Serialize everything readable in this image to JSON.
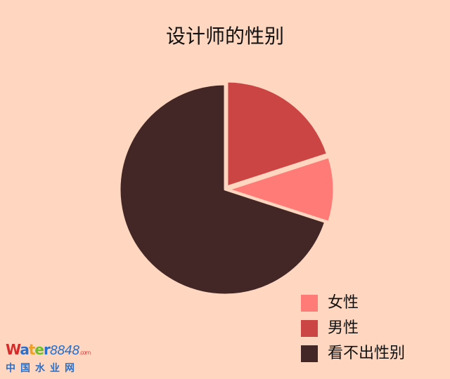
{
  "chart_data": {
    "type": "pie",
    "title": "设计师的性别",
    "categories": [
      "女性",
      "男性",
      "看不出性别"
    ],
    "values": [
      10,
      20,
      70
    ],
    "colors": [
      "#FF7B77",
      "#CC4545",
      "#432626"
    ],
    "start_angle_from_top_deg": 0,
    "direction": "clockwise",
    "slice_order": [
      "男性",
      "女性",
      "看不出性别"
    ],
    "exploded": [
      "男性",
      "女性"
    ],
    "legend_position": "bottom-right"
  },
  "background": "#FFD6BF",
  "watermark": {
    "text": "water8848.com",
    "subtext": "中国水业网"
  }
}
